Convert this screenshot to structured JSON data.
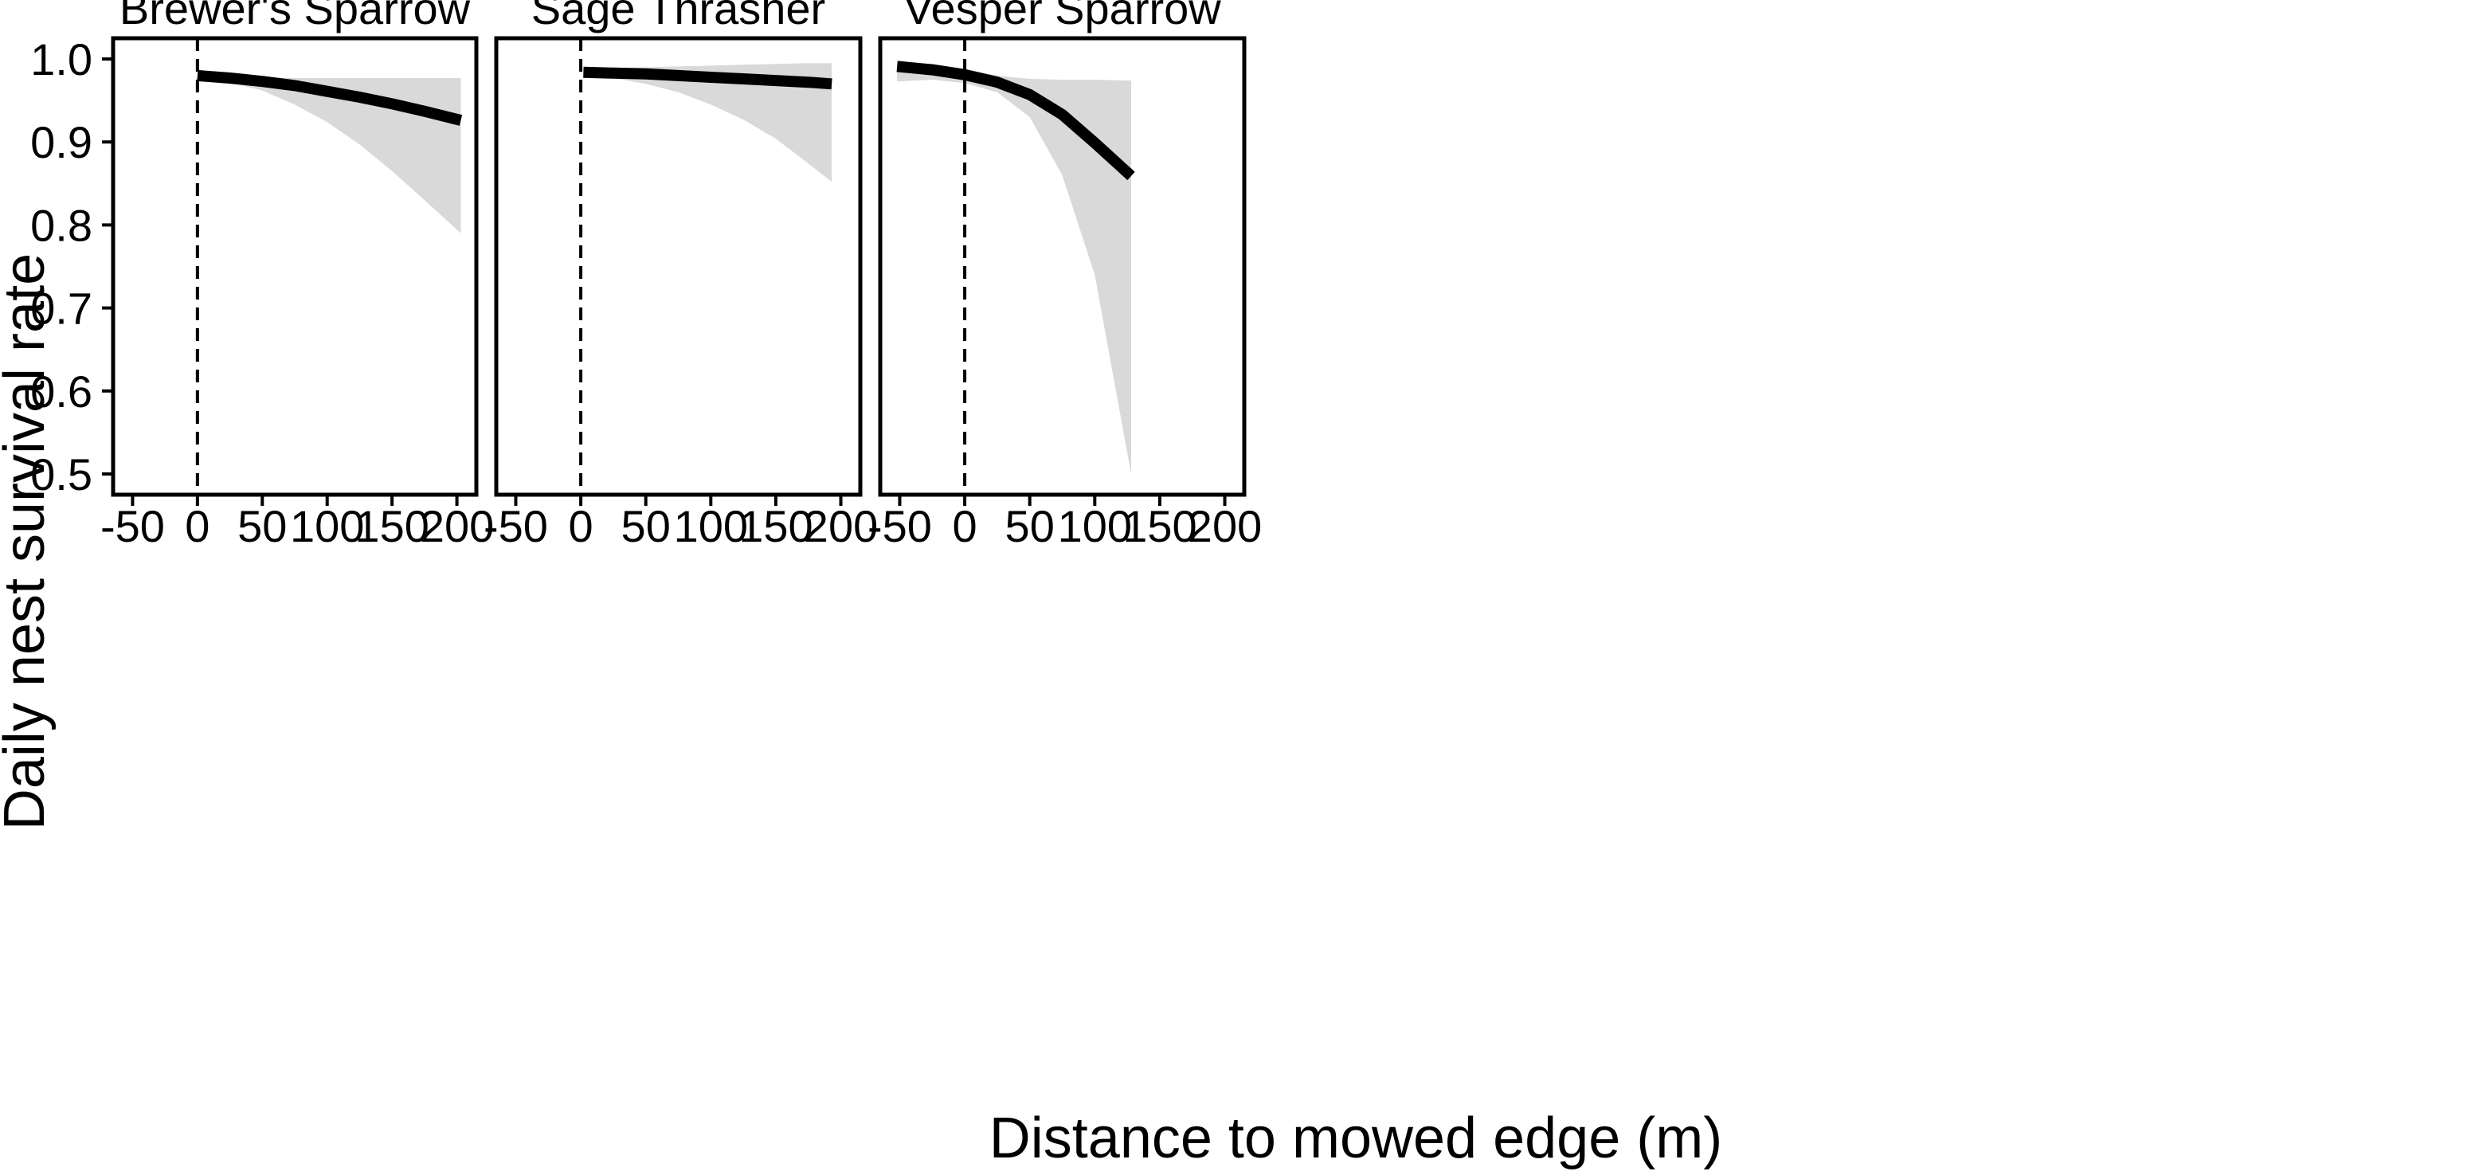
{
  "figure": {
    "xlabel": "Distance to mowed edge (m)",
    "ylabel": "Daily nest survival rate"
  },
  "colors": {
    "ribbon": "#d9d9d9",
    "line": "#000000",
    "frame": "#000000",
    "reference_line": "#000000"
  },
  "chart_data": [
    {
      "type": "line",
      "title": "Brewer's Sparrow",
      "xlim": [
        -65,
        215
      ],
      "ylim": [
        0.475,
        1.025
      ],
      "x_ticks": [
        "-50",
        "0",
        "50",
        "100",
        "150",
        "200"
      ],
      "y_ticks": [
        "0.5",
        "0.6",
        "0.7",
        "0.8",
        "0.9",
        "1.0"
      ],
      "reference_line_x": 0,
      "grid": false,
      "series": [
        {
          "x": [
            0,
            25,
            50,
            75,
            100,
            125,
            150,
            175,
            203
          ],
          "y": [
            0.98,
            0.977,
            0.973,
            0.968,
            0.961,
            0.954,
            0.946,
            0.937,
            0.926
          ],
          "lower": [
            0.975,
            0.972,
            0.962,
            0.945,
            0.924,
            0.897,
            0.865,
            0.83,
            0.79
          ],
          "upper": [
            0.982,
            0.98,
            0.978,
            0.977,
            0.977,
            0.977,
            0.977,
            0.977,
            0.977
          ]
        }
      ]
    },
    {
      "type": "line",
      "title": "Sage Thrasher",
      "xlim": [
        -65,
        215
      ],
      "ylim": [
        0.475,
        1.025
      ],
      "x_ticks": [
        "-50",
        "0",
        "50",
        "100",
        "150",
        "200"
      ],
      "y_ticks": [
        "0.5",
        "0.6",
        "0.7",
        "0.8",
        "0.9",
        "1.0"
      ],
      "reference_line_x": 0,
      "grid": false,
      "series": [
        {
          "x": [
            2,
            25,
            50,
            75,
            100,
            125,
            150,
            175,
            193
          ],
          "y": [
            0.984,
            0.983,
            0.982,
            0.98,
            0.978,
            0.976,
            0.974,
            0.972,
            0.97
          ],
          "lower": [
            0.979,
            0.977,
            0.97,
            0.96,
            0.945,
            0.927,
            0.904,
            0.874,
            0.852
          ],
          "upper": [
            0.989,
            0.989,
            0.99,
            0.991,
            0.992,
            0.993,
            0.994,
            0.995,
            0.995
          ]
        }
      ]
    },
    {
      "type": "line",
      "title": "Vesper Sparrow",
      "xlim": [
        -65,
        215
      ],
      "ylim": [
        0.475,
        1.025
      ],
      "x_ticks": [
        "-50",
        "0",
        "50",
        "100",
        "150",
        "200"
      ],
      "y_ticks": [
        "0.5",
        "0.6",
        "0.7",
        "0.8",
        "0.9",
        "1.0"
      ],
      "reference_line_x": 0,
      "grid": false,
      "series": [
        {
          "x": [
            -52,
            -25,
            0,
            25,
            50,
            75,
            100,
            128
          ],
          "y": [
            0.991,
            0.987,
            0.981,
            0.972,
            0.957,
            0.933,
            0.899,
            0.859
          ],
          "lower": [
            0.973,
            0.975,
            0.971,
            0.96,
            0.93,
            0.86,
            0.74,
            0.5
          ],
          "upper": [
            0.996,
            0.994,
            0.988,
            0.98,
            0.976,
            0.975,
            0.975,
            0.974
          ]
        }
      ]
    }
  ]
}
